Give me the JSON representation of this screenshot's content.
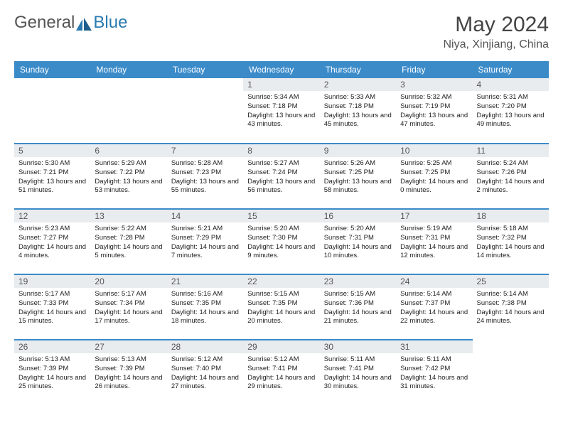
{
  "logo": {
    "part1": "General",
    "part2": "Blue"
  },
  "title": "May 2024",
  "subtitle": "Niya, Xinjiang, China",
  "colors": {
    "header_bg": "#3b8bc9",
    "header_text": "#ffffff",
    "daynum_bg": "#e9ecef",
    "border": "#3b8bc9",
    "logo_gray": "#555555",
    "logo_blue": "#2a7ab0"
  },
  "day_headers": [
    "Sunday",
    "Monday",
    "Tuesday",
    "Wednesday",
    "Thursday",
    "Friday",
    "Saturday"
  ],
  "weeks": [
    [
      {
        "n": "",
        "sr": "",
        "ss": "",
        "dl": ""
      },
      {
        "n": "",
        "sr": "",
        "ss": "",
        "dl": ""
      },
      {
        "n": "",
        "sr": "",
        "ss": "",
        "dl": ""
      },
      {
        "n": "1",
        "sr": "5:34 AM",
        "ss": "7:18 PM",
        "dl": "13 hours and 43 minutes."
      },
      {
        "n": "2",
        "sr": "5:33 AM",
        "ss": "7:18 PM",
        "dl": "13 hours and 45 minutes."
      },
      {
        "n": "3",
        "sr": "5:32 AM",
        "ss": "7:19 PM",
        "dl": "13 hours and 47 minutes."
      },
      {
        "n": "4",
        "sr": "5:31 AM",
        "ss": "7:20 PM",
        "dl": "13 hours and 49 minutes."
      }
    ],
    [
      {
        "n": "5",
        "sr": "5:30 AM",
        "ss": "7:21 PM",
        "dl": "13 hours and 51 minutes."
      },
      {
        "n": "6",
        "sr": "5:29 AM",
        "ss": "7:22 PM",
        "dl": "13 hours and 53 minutes."
      },
      {
        "n": "7",
        "sr": "5:28 AM",
        "ss": "7:23 PM",
        "dl": "13 hours and 55 minutes."
      },
      {
        "n": "8",
        "sr": "5:27 AM",
        "ss": "7:24 PM",
        "dl": "13 hours and 56 minutes."
      },
      {
        "n": "9",
        "sr": "5:26 AM",
        "ss": "7:25 PM",
        "dl": "13 hours and 58 minutes."
      },
      {
        "n": "10",
        "sr": "5:25 AM",
        "ss": "7:25 PM",
        "dl": "14 hours and 0 minutes."
      },
      {
        "n": "11",
        "sr": "5:24 AM",
        "ss": "7:26 PM",
        "dl": "14 hours and 2 minutes."
      }
    ],
    [
      {
        "n": "12",
        "sr": "5:23 AM",
        "ss": "7:27 PM",
        "dl": "14 hours and 4 minutes."
      },
      {
        "n": "13",
        "sr": "5:22 AM",
        "ss": "7:28 PM",
        "dl": "14 hours and 5 minutes."
      },
      {
        "n": "14",
        "sr": "5:21 AM",
        "ss": "7:29 PM",
        "dl": "14 hours and 7 minutes."
      },
      {
        "n": "15",
        "sr": "5:20 AM",
        "ss": "7:30 PM",
        "dl": "14 hours and 9 minutes."
      },
      {
        "n": "16",
        "sr": "5:20 AM",
        "ss": "7:31 PM",
        "dl": "14 hours and 10 minutes."
      },
      {
        "n": "17",
        "sr": "5:19 AM",
        "ss": "7:31 PM",
        "dl": "14 hours and 12 minutes."
      },
      {
        "n": "18",
        "sr": "5:18 AM",
        "ss": "7:32 PM",
        "dl": "14 hours and 14 minutes."
      }
    ],
    [
      {
        "n": "19",
        "sr": "5:17 AM",
        "ss": "7:33 PM",
        "dl": "14 hours and 15 minutes."
      },
      {
        "n": "20",
        "sr": "5:17 AM",
        "ss": "7:34 PM",
        "dl": "14 hours and 17 minutes."
      },
      {
        "n": "21",
        "sr": "5:16 AM",
        "ss": "7:35 PM",
        "dl": "14 hours and 18 minutes."
      },
      {
        "n": "22",
        "sr": "5:15 AM",
        "ss": "7:35 PM",
        "dl": "14 hours and 20 minutes."
      },
      {
        "n": "23",
        "sr": "5:15 AM",
        "ss": "7:36 PM",
        "dl": "14 hours and 21 minutes."
      },
      {
        "n": "24",
        "sr": "5:14 AM",
        "ss": "7:37 PM",
        "dl": "14 hours and 22 minutes."
      },
      {
        "n": "25",
        "sr": "5:14 AM",
        "ss": "7:38 PM",
        "dl": "14 hours and 24 minutes."
      }
    ],
    [
      {
        "n": "26",
        "sr": "5:13 AM",
        "ss": "7:39 PM",
        "dl": "14 hours and 25 minutes."
      },
      {
        "n": "27",
        "sr": "5:13 AM",
        "ss": "7:39 PM",
        "dl": "14 hours and 26 minutes."
      },
      {
        "n": "28",
        "sr": "5:12 AM",
        "ss": "7:40 PM",
        "dl": "14 hours and 27 minutes."
      },
      {
        "n": "29",
        "sr": "5:12 AM",
        "ss": "7:41 PM",
        "dl": "14 hours and 29 minutes."
      },
      {
        "n": "30",
        "sr": "5:11 AM",
        "ss": "7:41 PM",
        "dl": "14 hours and 30 minutes."
      },
      {
        "n": "31",
        "sr": "5:11 AM",
        "ss": "7:42 PM",
        "dl": "14 hours and 31 minutes."
      },
      {
        "n": "",
        "sr": "",
        "ss": "",
        "dl": ""
      }
    ]
  ],
  "labels": {
    "sunrise": "Sunrise:",
    "sunset": "Sunset:",
    "daylight": "Daylight:"
  }
}
